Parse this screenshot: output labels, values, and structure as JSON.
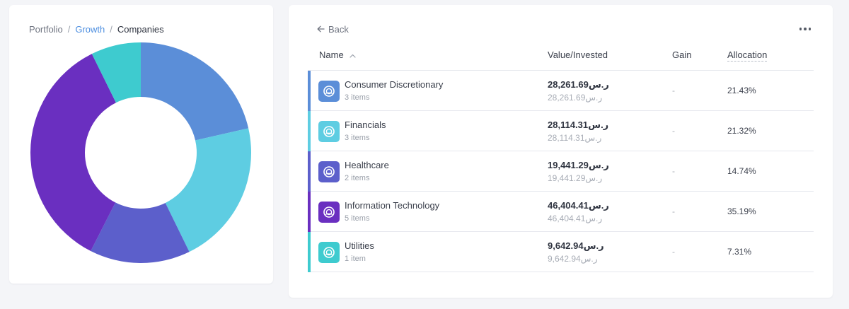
{
  "breadcrumb": {
    "items": [
      "Portfolio",
      "Growth",
      "Companies"
    ],
    "separator": "/"
  },
  "header": {
    "back_label": "Back",
    "more_icon": "more-horizontal-icon"
  },
  "table": {
    "columns": {
      "name": "Name",
      "value": "Value/Invested",
      "gain": "Gain",
      "allocation": "Allocation"
    },
    "sort_icon": "chevron-up-icon",
    "rows": [
      {
        "name": "Consumer Discretionary",
        "count": "3 items",
        "value": "28,261.69ر.س",
        "invested": "28,261.69ر.س",
        "gain": "-",
        "allocation": "21.43%",
        "color": "#5b8ed8"
      },
      {
        "name": "Financials",
        "count": "3 items",
        "value": "28,114.31ر.س",
        "invested": "28,114.31ر.س",
        "gain": "-",
        "allocation": "21.32%",
        "color": "#5ecde2"
      },
      {
        "name": "Healthcare",
        "count": "2 items",
        "value": "19,441.29ر.س",
        "invested": "19,441.29ر.س",
        "gain": "-",
        "allocation": "14.74%",
        "color": "#5c5fcb"
      },
      {
        "name": "Information Technology",
        "count": "5 items",
        "value": "46,404.41ر.س",
        "invested": "46,404.41ر.س",
        "gain": "-",
        "allocation": "35.19%",
        "color": "#6a2fc0"
      },
      {
        "name": "Utilities",
        "count": "1 item",
        "value": "9,642.94ر.س",
        "invested": "9,642.94ر.س",
        "gain": "-",
        "allocation": "7.31%",
        "color": "#3ecbcf"
      }
    ]
  },
  "chart_data": {
    "type": "pie",
    "variant": "donut",
    "categories": [
      "Consumer Discretionary",
      "Financials",
      "Healthcare",
      "Information Technology",
      "Utilities"
    ],
    "values": [
      21.43,
      21.32,
      14.74,
      35.19,
      7.31
    ],
    "colors": [
      "#5b8ed8",
      "#5ecde2",
      "#5c5fcb",
      "#6a2fc0",
      "#3ecbcf"
    ]
  }
}
